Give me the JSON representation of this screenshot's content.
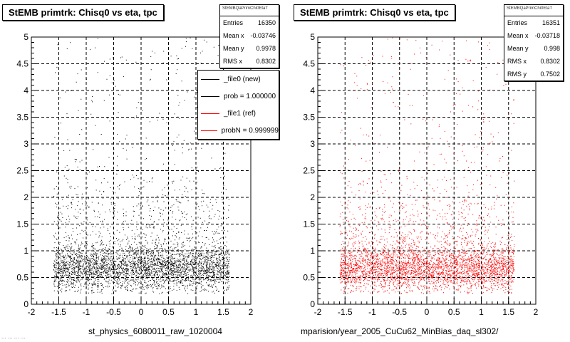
{
  "panels": [
    {
      "title": "StEMB primtrk: Chisq0 vs eta, tpc",
      "stats": {
        "name": "StEMBQaPrimChi0EtaT",
        "rows": [
          {
            "label": "Entries",
            "value": "16350"
          },
          {
            "label": "Mean x",
            "value": "-0.03746"
          },
          {
            "label": "Mean y",
            "value": "0.9978"
          },
          {
            "label": "RMS x",
            "value": "0.8302"
          }
        ]
      },
      "legend": [
        {
          "label": "_file0 (new)",
          "color": "#000000"
        },
        {
          "label": "prob = 1.000000",
          "color": "#000000"
        },
        {
          "label": "_file1 (ref)",
          "color": "#ff0000"
        },
        {
          "label": "probN = 0.999999",
          "color": "#ff0000"
        }
      ],
      "xtitle": "st_physics_6080011_raw_1020004",
      "footer": "... ... ... ..."
    },
    {
      "title": "StEMB primtrk: Chisq0 vs eta, tpc",
      "stats": {
        "name": "StEMBQaPrimChi0EtaT",
        "rows": [
          {
            "label": "Entries",
            "value": "16351"
          },
          {
            "label": "Mean x",
            "value": "-0.03718"
          },
          {
            "label": "Mean y",
            "value": "0.998"
          },
          {
            "label": "RMS x",
            "value": "0.8302"
          },
          {
            "label": "RMS y",
            "value": "0.7502"
          }
        ]
      },
      "xtitle": "mparision/year_2005_CuCu62_MinBias_daq_sl302/"
    }
  ],
  "chart_data": [
    {
      "type": "scatter",
      "title": "StEMB primtrk: Chisq0 vs eta, tpc",
      "xlabel": "st_physics_6080011_raw_1020004",
      "ylabel": "",
      "xlim": [
        -2,
        2
      ],
      "ylim": [
        0,
        5
      ],
      "xticks": [
        "-2",
        "-1.5",
        "-1",
        "-0.5",
        "0",
        "0.5",
        "1",
        "1.5",
        "2"
      ],
      "yticks": [
        "0",
        "0.5",
        "1",
        "1.5",
        "2",
        "2.5",
        "3",
        "3.5",
        "4",
        "4.5",
        "5"
      ],
      "grid": true,
      "color": "#000000",
      "series": [
        {
          "name": "_file0 (new)",
          "entries": 16350,
          "mean_x": -0.03746,
          "mean_y": 0.9978,
          "rms_x": 0.8302,
          "x_range": [
            -1.6,
            1.6
          ]
        }
      ]
    },
    {
      "type": "scatter",
      "title": "StEMB primtrk: Chisq0 vs eta, tpc",
      "xlabel": "mparision/year_2005_CuCu62_MinBias_daq_sl302/",
      "ylabel": "",
      "xlim": [
        -2,
        2
      ],
      "ylim": [
        0,
        5
      ],
      "xticks": [
        "-2",
        "-1.5",
        "-1",
        "-0.5",
        "0",
        "0.5",
        "1",
        "1.5",
        "2"
      ],
      "yticks": [
        "0",
        "0.5",
        "1",
        "1.5",
        "2",
        "2.5",
        "3",
        "3.5",
        "4",
        "4.5",
        "5"
      ],
      "grid": true,
      "color": "#ff0000",
      "series": [
        {
          "name": "_file1 (ref)",
          "entries": 16351,
          "mean_x": -0.03718,
          "mean_y": 0.998,
          "rms_x": 0.8302,
          "rms_y": 0.7502,
          "x_range": [
            -1.6,
            1.6
          ]
        }
      ]
    }
  ]
}
